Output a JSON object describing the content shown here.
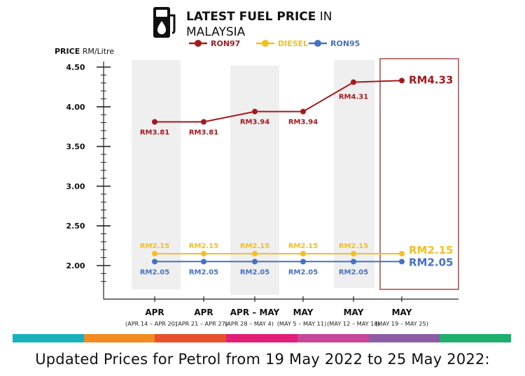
{
  "title": {
    "bold": "LATEST FUEL PRICE",
    "rest_line1": " IN",
    "line2": "MALAYSIA"
  },
  "colors": {
    "ron97": "#a31b1f",
    "diesel": "#f4c020",
    "ron95": "#4472c4",
    "band": "#efefef",
    "highlight": "#a64a44",
    "axis": "#222222"
  },
  "stripe_colors": [
    "#18b1bd",
    "#f28b20",
    "#e8512b",
    "#e21e79",
    "#c8459a",
    "#8e5ba5",
    "#1fae6b"
  ],
  "caption": "Updated Prices for Petrol from 19 May 2022 to 25 May 2022:",
  "chart_data": {
    "type": "line",
    "ylabel_bold": "PRICE",
    "ylabel_unit": " RM/Litre",
    "ylim": [
      1.7,
      4.5
    ],
    "yticks": [
      "4.50",
      "4.00",
      "3.50",
      "3.00",
      "2.50",
      "2.00"
    ],
    "categories": [
      "APR",
      "APR",
      "APR – MAY",
      "MAY",
      "MAY",
      "MAY"
    ],
    "sub_categories": [
      "(APR 14 – APR 20)",
      "(APR 21 – APR 27)",
      "(APR 28 – MAY 4)",
      "(MAY 5 – MAY 11)",
      "(MAY 12 – MAY 18)",
      "(MAY 19 – MAY 25)"
    ],
    "legend": [
      "RON97",
      "DIESEL",
      "RON95"
    ],
    "series": [
      {
        "name": "RON97",
        "values": [
          3.81,
          3.81,
          3.94,
          3.94,
          4.31,
          4.33
        ],
        "labels": [
          "RM3.81",
          "RM3.81",
          "RM3.94",
          "RM3.94",
          "RM4.31",
          "RM4.33"
        ]
      },
      {
        "name": "DIESEL",
        "values": [
          2.15,
          2.15,
          2.15,
          2.15,
          2.15,
          2.15
        ],
        "labels": [
          "RM2.15",
          "RM2.15",
          "RM2.15",
          "RM2.15",
          "RM2.15",
          "RM2.15"
        ]
      },
      {
        "name": "RON95",
        "values": [
          2.05,
          2.05,
          2.05,
          2.05,
          2.05,
          2.05
        ],
        "labels": [
          "RM2.05",
          "RM2.05",
          "RM2.05",
          "RM2.05",
          "RM2.05",
          "RM2.05"
        ]
      }
    ]
  }
}
